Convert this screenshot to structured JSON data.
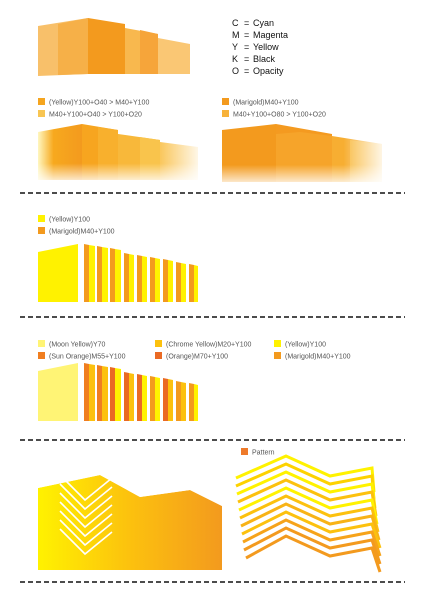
{
  "legend": [
    {
      "code": "C",
      "label": "Cyan"
    },
    {
      "code": "M",
      "label": "Magenta"
    },
    {
      "code": "Y",
      "label": "Yellow"
    },
    {
      "code": "K",
      "label": "Black"
    },
    {
      "code": "O",
      "label": "Opacity"
    }
  ],
  "legend_separator": "=",
  "section1": {
    "left_key": [
      {
        "text": "(Yellow)Y100+O40 > M40+Y100",
        "color": "#f5a51f"
      },
      {
        "text": "M40+Y100+O40 > Y100+O20",
        "color": "#f8c552"
      }
    ],
    "right_key": [
      {
        "text": "(Marigold)M40+Y100",
        "color": "#f39a1e"
      },
      {
        "text": "M40+Y100+O80 > Y100+O20",
        "color": "#f7b23a"
      }
    ]
  },
  "section2": {
    "key": [
      {
        "text": "(Yellow)Y100",
        "color": "#fff200"
      },
      {
        "text": "(Marigold)M40+Y100",
        "color": "#f39a1e"
      }
    ]
  },
  "section3": {
    "key_col1": [
      {
        "text": "(Moon Yellow)Y70",
        "color": "#fff475"
      },
      {
        "text": "(Sun Orange)M55+Y100",
        "color": "#f07e20"
      }
    ],
    "key_col2": [
      {
        "text": "(Chrome Yellow)M20+Y100",
        "color": "#fcc10e"
      },
      {
        "text": "(Orange)M70+Y100",
        "color": "#ea6a24"
      }
    ],
    "key_col3": [
      {
        "text": "(Yellow)Y100",
        "color": "#fff200"
      },
      {
        "text": "(Marigold)M40+Y100",
        "color": "#f39a1e"
      }
    ]
  },
  "section4": {
    "key": [
      {
        "text": "Pattern",
        "color": "#ee7a2a"
      }
    ]
  },
  "colors": {
    "yellow": "#fff200",
    "moon_yellow": "#fff475",
    "chrome_yellow": "#fcc10e",
    "marigold": "#f39a1e",
    "orange": "#ea6a24",
    "sun_orange": "#f07e20",
    "divider": "#111111"
  }
}
